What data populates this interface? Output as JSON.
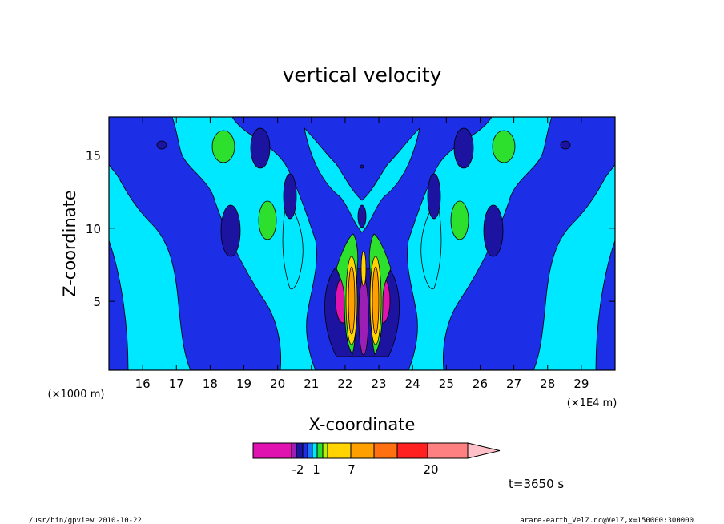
{
  "chart_data": {
    "type": "heatmap",
    "title": "vertical velocity",
    "xlabel": "X-coordinate",
    "ylabel": "Z-coordinate",
    "x_unit_left": "(×1000 m)",
    "x_unit_right": "(×1E4 m)",
    "xlim": [
      15.0,
      30.0
    ],
    "ylim": [
      0.3,
      17.6
    ],
    "x_ticks": [
      16,
      17,
      18,
      19,
      20,
      21,
      22,
      23,
      24,
      25,
      26,
      27,
      28,
      29
    ],
    "y_ticks": [
      5,
      10,
      15
    ],
    "colorbar": {
      "colors": [
        "#e012b0",
        "#9b1fb5",
        "#1c14a0",
        "#1c2ee6",
        "#1976ff",
        "#00e8ff",
        "#2ee02e",
        "#b8f000",
        "#ffd400",
        "#ffa000",
        "#ff7010",
        "#ff2020",
        "#ff8080",
        "#ffc0c8"
      ],
      "labels": [
        "-2",
        "1",
        "7",
        "20"
      ]
    },
    "time_label": "t=3650 s"
  },
  "footer": {
    "left": "/usr/bin/gpview   2010-10-22",
    "right": "arare-earth_VelZ.nc@VelZ,x=150000:300000"
  }
}
